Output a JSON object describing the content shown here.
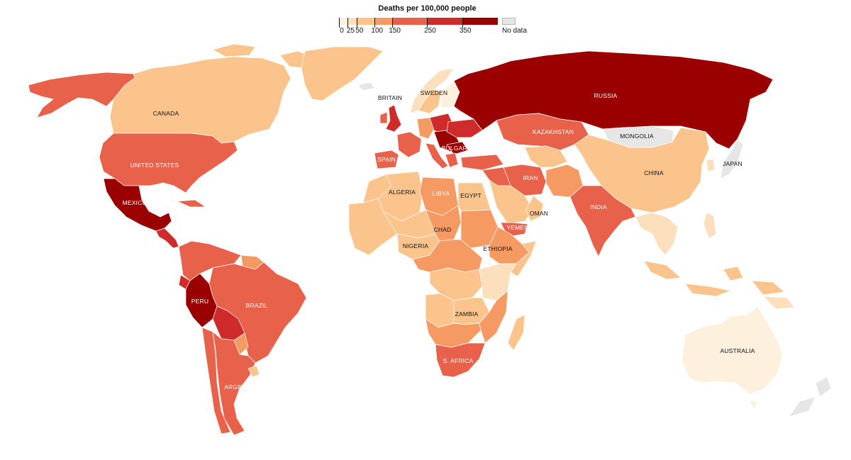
{
  "legend": {
    "title": "Deaths per 100,000 people",
    "ticks": [
      "0",
      "25",
      "50",
      "100",
      "150",
      "250",
      "350"
    ],
    "no_data_label": "No data",
    "bins": [
      {
        "from": 0,
        "to": 25,
        "color": "#fdf0dc"
      },
      {
        "from": 25,
        "to": 50,
        "color": "#fce0bd"
      },
      {
        "from": 50,
        "to": 100,
        "color": "#fbc48c"
      },
      {
        "from": 100,
        "to": 150,
        "color": "#f59a62"
      },
      {
        "from": 150,
        "to": 250,
        "color": "#e8614a"
      },
      {
        "from": 250,
        "to": 350,
        "color": "#cf2b2b"
      },
      {
        "from": 350,
        "to": 450,
        "color": "#9b0000"
      }
    ],
    "no_data_color": "#e6e6e6"
  },
  "labels": {
    "canada": "CANADA",
    "united_states": "UNITED STATES",
    "mexico": "MEXICO",
    "peru": "PERU",
    "brazil": "BRAZIL",
    "argentina": "ARGENTINA",
    "britain": "BRITAIN",
    "sweden": "SWEDEN",
    "spain": "SPAIN",
    "bulgaria": "BULGARIA",
    "russia": "RUSSIA",
    "kazakhstan": "KAZAKHSTAN",
    "mongolia": "MONGOLIA",
    "china": "CHINA",
    "japan": "JAPAN",
    "iran": "IRAN",
    "india": "INDIA",
    "oman": "OMAN",
    "yemen": "YEMEN",
    "algeria": "ALGERIA",
    "libya": "LIBYA",
    "egypt": "EGYPT",
    "chad": "CHAD",
    "nigeria": "NIGERIA",
    "ethiopia": "ETHIOPIA",
    "zambia": "ZAMBIA",
    "s_africa": "S. AFRICA",
    "australia": "AUSTRALIA"
  },
  "colors": {
    "bin_0_25": "#fdf0dc",
    "bin_25_50": "#fce0bd",
    "bin_50_100": "#fbc48c",
    "bin_100_150": "#f59a62",
    "bin_150_250": "#e8614a",
    "bin_250_350": "#cf2b2b",
    "bin_350_plus": "#9b0000",
    "no_data": "#e6e6e6"
  }
}
